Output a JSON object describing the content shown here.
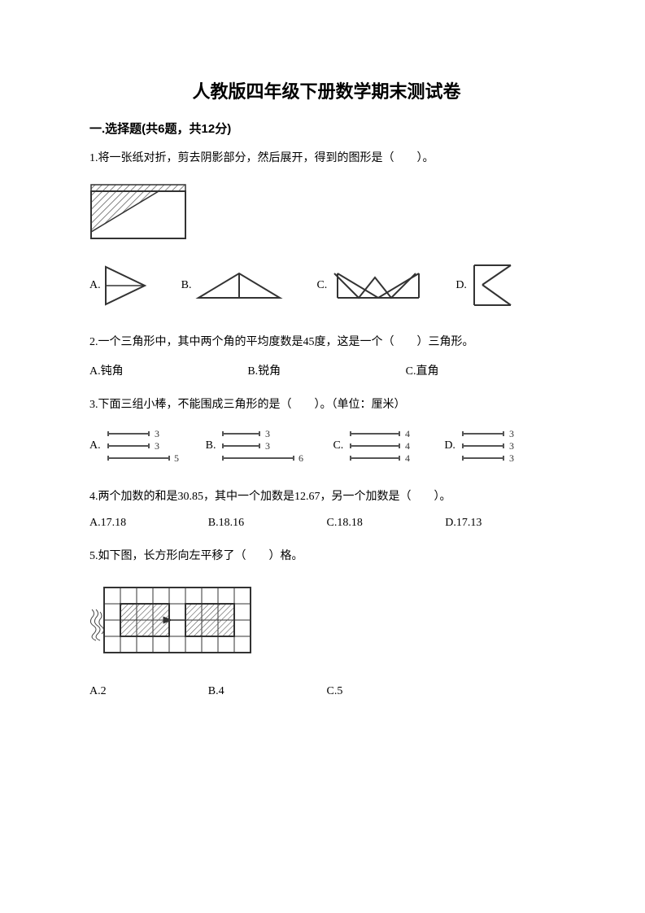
{
  "title": "人教版四年级下册数学期末测试卷",
  "section1": {
    "header": "一.选择题(共6题，共12分)",
    "q1": {
      "text": "1.将一张纸对折，剪去阴影部分，然后展开，得到的图形是（　　）。",
      "optA": "A.",
      "optB": "B.",
      "optC": "C.",
      "optD": "D.",
      "figure": {
        "width": 120,
        "height": 68,
        "outer_stroke": "#333333",
        "fold_stroke": "#555555",
        "hatch_stroke": "#555555",
        "bg": "#ffffff"
      },
      "shape_stroke": "#333333"
    },
    "q2": {
      "text": "2.一个三角形中，其中两个角的平均度数是45度，这是一个（　　）三角形。",
      "optA": "A.钝角",
      "optB": "B.锐角",
      "optC": "C.直角"
    },
    "q3": {
      "text": "3.下面三组小棒，不能围成三角形的是（　　）。（单位：厘米）",
      "optA": "A.",
      "optB": "B.",
      "optC": "C.",
      "optD": "D.",
      "dataA": [
        "3",
        "3",
        "5"
      ],
      "dataB": [
        "3",
        "3",
        "6"
      ],
      "dataC": [
        "4",
        "4",
        "4"
      ],
      "dataD": [
        "3",
        "3",
        "3"
      ],
      "stick_stroke": "#555555",
      "label_color": "#333333",
      "label_fontsize": 12
    },
    "q4": {
      "text": "4.两个加数的和是30.85，其中一个加数是12.67，另一个加数是（　　）。",
      "optA": "A.17.18",
      "optB": "B.18.16",
      "optC": "C.18.18",
      "optD": "D.17.13"
    },
    "q5": {
      "text": "5.如下图，长方形向左平移了（　　）格。",
      "optA": "A.2",
      "optB": "B.4",
      "optC": "C.5",
      "grid": {
        "cols": 9,
        "rows": 4,
        "cell": 20,
        "grid_stroke": "#333333",
        "rect_fill_hatch": "#555555",
        "rect_stroke": "#333333",
        "arrow_stroke": "#333333",
        "rectA": {
          "col0": 1,
          "row0": 1,
          "w": 3,
          "h": 2
        },
        "rectB": {
          "col0": 5,
          "row0": 1,
          "w": 3,
          "h": 2
        }
      }
    }
  }
}
